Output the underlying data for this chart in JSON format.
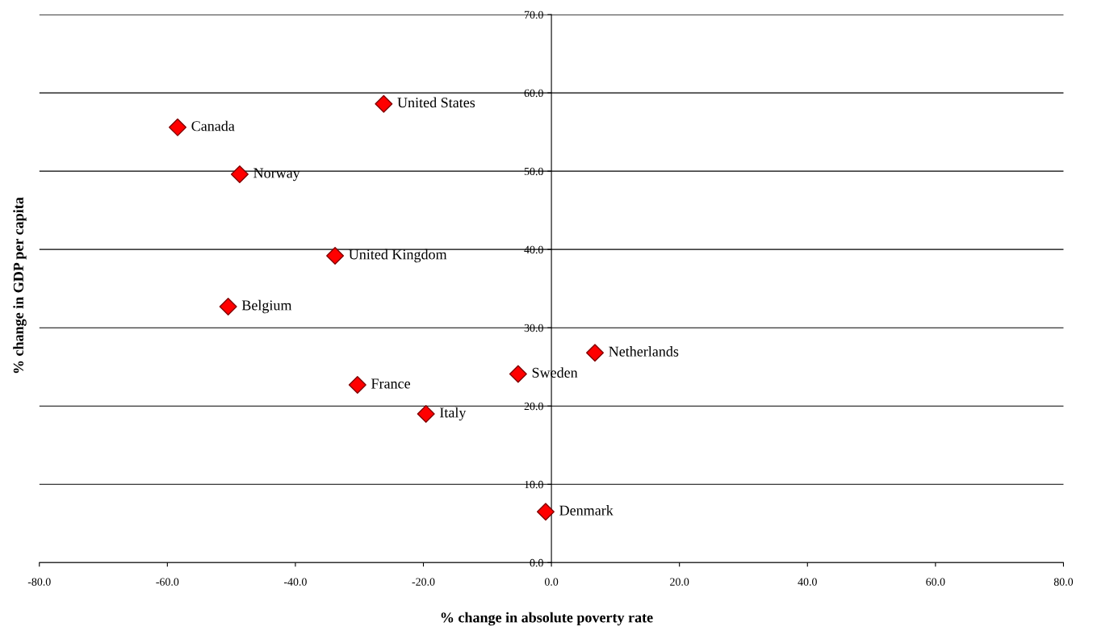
{
  "chart_data": {
    "type": "scatter",
    "xlabel": "% change in absolute poverty rate",
    "ylabel": "% change in GDP per capita",
    "x": [
      -26.2,
      -58.4,
      -48.7,
      -33.8,
      -50.5,
      6.8,
      -5.2,
      -30.3,
      -19.6,
      -0.9
    ],
    "series": [
      {
        "color": "#ff0000",
        "values": [
          58.6,
          55.6,
          49.6,
          39.2,
          32.7,
          26.8,
          24.1,
          22.7,
          19.0,
          6.5
        ]
      }
    ],
    "marker": "diamond",
    "annotations": [
      {
        "text": "United States",
        "x": -26.2,
        "y": 58.6
      },
      {
        "text": "Canada",
        "x": -58.4,
        "y": 55.6
      },
      {
        "text": "Norway",
        "x": -48.7,
        "y": 49.6
      },
      {
        "text": "United Kingdom",
        "x": -33.8,
        "y": 39.2
      },
      {
        "text": "Belgium",
        "x": -50.5,
        "y": 32.7
      },
      {
        "text": "Netherlands",
        "x": 6.8,
        "y": 26.8
      },
      {
        "text": "Sweden",
        "x": -5.2,
        "y": 24.1
      },
      {
        "text": "France",
        "x": -30.3,
        "y": 22.7
      },
      {
        "text": "Italy",
        "x": -19.6,
        "y": 19.0
      },
      {
        "text": "Denmark",
        "x": -0.9,
        "y": 6.5
      }
    ],
    "xlim": [
      -80,
      80
    ],
    "xticks": [
      {
        "value": -80,
        "label": "-80.0"
      },
      {
        "value": -60,
        "label": "-60.0"
      },
      {
        "value": -40,
        "label": "-40.0"
      },
      {
        "value": -20,
        "label": "-20.0"
      },
      {
        "value": 0,
        "label": "0.0"
      },
      {
        "value": 20,
        "label": "20.0"
      },
      {
        "value": 40,
        "label": "40.0"
      },
      {
        "value": 60,
        "label": "60.0"
      },
      {
        "value": 80,
        "label": "80.0"
      }
    ],
    "ylim": [
      0,
      70
    ],
    "yticks": [
      {
        "value": 0,
        "label": "0.0"
      },
      {
        "value": 10,
        "label": "10.0"
      },
      {
        "value": 20,
        "label": "20.0"
      },
      {
        "value": 30,
        "label": "30.0"
      },
      {
        "value": 40,
        "label": "40.0"
      },
      {
        "value": 50,
        "label": "50.0"
      },
      {
        "value": 60,
        "label": "60.0"
      },
      {
        "value": 70,
        "label": "70.0"
      }
    ],
    "grid": "y",
    "legend": false
  }
}
